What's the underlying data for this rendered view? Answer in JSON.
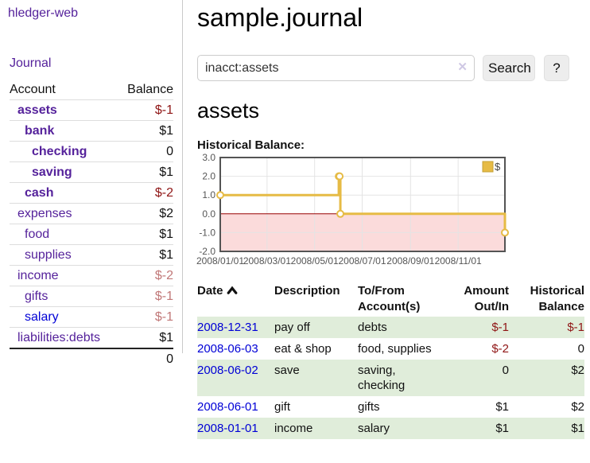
{
  "app": {
    "brand": "hledger-web"
  },
  "sidebar": {
    "journal_link": "Journal",
    "table": {
      "headers": [
        "Account",
        "Balance"
      ],
      "rows": [
        {
          "name": "assets",
          "balance": "$-1",
          "indent": 0,
          "bold": true,
          "neg": "strong",
          "blue": false
        },
        {
          "name": "bank",
          "balance": "$1",
          "indent": 1,
          "bold": true,
          "neg": "",
          "blue": false
        },
        {
          "name": "checking",
          "balance": "0",
          "indent": 2,
          "bold": true,
          "neg": "",
          "blue": false
        },
        {
          "name": "saving",
          "balance": "$1",
          "indent": 2,
          "bold": true,
          "neg": "",
          "blue": false
        },
        {
          "name": "cash",
          "balance": "$-2",
          "indent": 1,
          "bold": true,
          "neg": "strong",
          "blue": false
        },
        {
          "name": "expenses",
          "balance": "$2",
          "indent": 0,
          "bold": false,
          "neg": "",
          "blue": false
        },
        {
          "name": "food",
          "balance": "$1",
          "indent": 1,
          "bold": false,
          "neg": "",
          "blue": false
        },
        {
          "name": "supplies",
          "balance": "$1",
          "indent": 1,
          "bold": false,
          "neg": "",
          "blue": false
        },
        {
          "name": "income",
          "balance": "$-2",
          "indent": 0,
          "bold": false,
          "neg": "soft",
          "blue": false
        },
        {
          "name": "gifts",
          "balance": "$-1",
          "indent": 1,
          "bold": false,
          "neg": "soft",
          "blue": false
        },
        {
          "name": "salary",
          "balance": "$-1",
          "indent": 1,
          "bold": false,
          "neg": "soft",
          "blue": true
        },
        {
          "name": "liabilities:debts",
          "balance": "$1",
          "indent": 0,
          "bold": false,
          "neg": "",
          "blue": false
        }
      ],
      "total": "0"
    }
  },
  "main": {
    "title": "sample.journal",
    "search": {
      "value": "inacct:assets",
      "clear_icon": "✕",
      "button_label": "Search",
      "help_label": "?"
    },
    "account_heading": "assets",
    "chart_heading": "Historical Balance:"
  },
  "chart_data": {
    "type": "line",
    "title": "Historical Balance:",
    "step": true,
    "series": [
      {
        "name": "$",
        "color": "#e6bb45",
        "points": [
          {
            "date": "2008-01-01",
            "value": 1
          },
          {
            "date": "2008-06-01",
            "value": 2
          },
          {
            "date": "2008-06-02",
            "value": 2
          },
          {
            "date": "2008-06-03",
            "value": 0
          },
          {
            "date": "2008-12-31",
            "value": -1
          }
        ]
      }
    ],
    "xlim_dates": [
      "2008-01-01",
      "2008-12-31"
    ],
    "ylim": [
      -2,
      3
    ],
    "y_ticks": [
      3.0,
      2.0,
      1.0,
      0.0,
      -1.0,
      -2.0
    ],
    "x_ticks": [
      "2008/01/01",
      "2008/03/01",
      "2008/05/01",
      "2008/07/01",
      "2008/09/01",
      "2008/11/01"
    ],
    "grid": true,
    "legend_position": "top-right",
    "negative_fill": "#fbdbdb",
    "zero_line_color": "#990000",
    "border_color": "#545454"
  },
  "register": {
    "headers": [
      {
        "line1": "Date",
        "line2": ""
      },
      {
        "line1": "Description",
        "line2": ""
      },
      {
        "line1": "To/From",
        "line2": "Account(s)"
      },
      {
        "line1": "Amount",
        "line2": "Out/In"
      },
      {
        "line1": "Historical",
        "line2": "Balance"
      }
    ],
    "rows": [
      {
        "date": "2008-12-31",
        "description": "pay off",
        "accounts": [
          "debts"
        ],
        "amount": "$-1",
        "balance": "$-1",
        "amount_neg": true,
        "balance_neg": true
      },
      {
        "date": "2008-06-03",
        "description": "eat & shop",
        "accounts": [
          "food, supplies"
        ],
        "amount": "$-2",
        "balance": "0",
        "amount_neg": true,
        "balance_neg": false
      },
      {
        "date": "2008-06-02",
        "description": "save",
        "accounts": [
          "saving,",
          "checking"
        ],
        "amount": "0",
        "balance": "$2",
        "amount_neg": false,
        "balance_neg": false
      },
      {
        "date": "2008-06-01",
        "description": "gift",
        "accounts": [
          "gifts"
        ],
        "amount": "$1",
        "balance": "$2",
        "amount_neg": false,
        "balance_neg": false
      },
      {
        "date": "2008-01-01",
        "description": "income",
        "accounts": [
          "salary"
        ],
        "amount": "$1",
        "balance": "$1",
        "amount_neg": false,
        "balance_neg": false
      }
    ]
  }
}
